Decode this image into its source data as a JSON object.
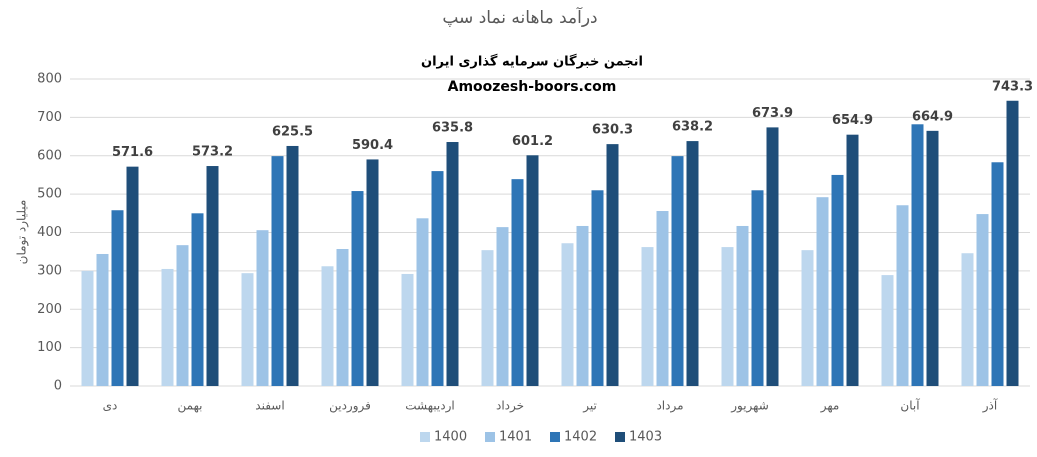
{
  "chart_data": {
    "type": "bar",
    "title": "درآمد ماهانه نماد سپ",
    "subtitle": [
      "انجمن خبرگان سرمایه گذاری ایران",
      "Amoozesh-boors.com"
    ],
    "y_label": "میلیارد تومان",
    "categories": [
      "دی",
      "بهمن",
      "اسفند",
      "فروردین",
      "اردیبهشت",
      "خرداد",
      "تیر",
      "مرداد",
      "شهریور",
      "مهر",
      "آبان",
      "آذر"
    ],
    "series": [
      {
        "name": "1400",
        "color": "#bdd7ee",
        "data_labels": false,
        "values": [
          300,
          305,
          294,
          312,
          292,
          354,
          372,
          362,
          362,
          354,
          289,
          346
        ]
      },
      {
        "name": "1401",
        "color": "#9dc3e6",
        "data_labels": false,
        "values": [
          344,
          367,
          406,
          357,
          437,
          414,
          417,
          456,
          417,
          492,
          471,
          448
        ]
      },
      {
        "name": "1402",
        "color": "#2e75b6",
        "data_labels": false,
        "values": [
          458,
          450,
          599,
          508,
          560,
          539,
          510,
          599,
          510,
          550,
          682,
          583
        ]
      },
      {
        "name": "1403",
        "color": "#1f4e79",
        "data_labels": true,
        "values": [
          571.6,
          573.2,
          625.5,
          590.4,
          635.8,
          601.2,
          630.3,
          638.2,
          673.9,
          654.9,
          664.9,
          743.3
        ]
      }
    ],
    "ylim": [
      0,
      800
    ],
    "yticks": [
      0,
      100,
      200,
      300,
      400,
      500,
      600,
      700,
      800
    ],
    "grid": true,
    "legend": "bottom"
  }
}
